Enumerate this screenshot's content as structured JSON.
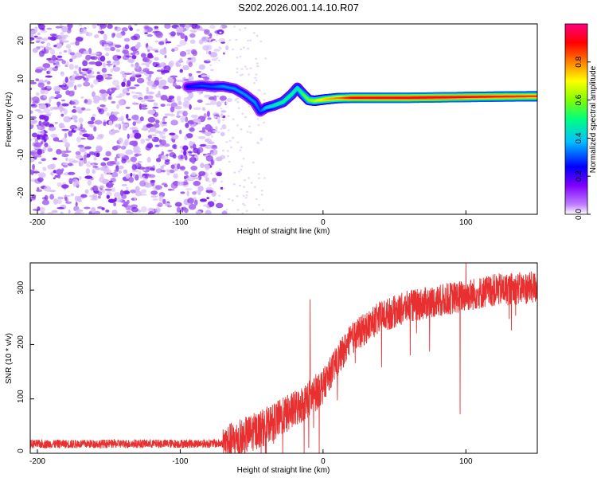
{
  "title": "S202.2026.001.14.10.R07",
  "chart_data": [
    {
      "type": "heatmap",
      "name": "spectrogram",
      "xlabel": "Height of straight line (km)",
      "ylabel": "Frequency (Hz)",
      "xlim": [
        -205,
        150
      ],
      "ylim": [
        -25,
        25
      ],
      "xticks": [
        -200,
        -100,
        0,
        100
      ],
      "yticks": [
        -20,
        -10,
        0,
        10,
        20
      ],
      "colorbar": {
        "label": "Normalized spectral amplitude",
        "range": [
          0,
          1
        ],
        "ticks": [
          0.0,
          0.2,
          0.4,
          0.6,
          0.8
        ],
        "colors": [
          "#ffffff",
          "#c080ff",
          "#8000ff",
          "#0000ff",
          "#00c0ff",
          "#00ff80",
          "#80ff00",
          "#ffff00",
          "#ff8000",
          "#ff0000",
          "#ff0080"
        ]
      },
      "ridge": {
        "x": [
          -95,
          -85,
          -78,
          -70,
          -62,
          -55,
          -48,
          -44,
          -40,
          -35,
          -28,
          -22,
          -18,
          -14,
          -10,
          -6,
          -2,
          2,
          10,
          20,
          40,
          60,
          80,
          100,
          120,
          150
        ],
        "y": [
          8.5,
          8.8,
          8.5,
          8.6,
          8.0,
          6.5,
          4.5,
          2.0,
          3.0,
          3.5,
          4.5,
          6.5,
          8.2,
          6.5,
          5.0,
          4.8,
          5.0,
          5.2,
          5.5,
          5.6,
          5.6,
          5.6,
          5.7,
          5.8,
          5.9,
          6.0
        ],
        "amplitude": [
          0.25,
          0.3,
          0.3,
          0.35,
          0.35,
          0.35,
          0.35,
          0.3,
          0.4,
          0.45,
          0.5,
          0.5,
          0.45,
          0.55,
          0.6,
          0.65,
          0.7,
          0.75,
          0.8,
          0.9,
          0.92,
          0.93,
          0.93,
          0.9,
          0.88,
          0.85
        ]
      }
    },
    {
      "type": "line",
      "name": "snr",
      "xlabel": "Height of straight line (km)",
      "ylabel": "SNR (10 * v/v)",
      "xlim": [
        -205,
        150
      ],
      "ylim": [
        0,
        350
      ],
      "xticks": [
        -200,
        -100,
        0,
        100
      ],
      "yticks": [
        0,
        100,
        200,
        300
      ],
      "color": "#e83030",
      "trend": {
        "x": [
          -205,
          -70,
          -60,
          -40,
          -20,
          -10,
          0,
          10,
          20,
          40,
          60,
          80,
          100,
          120,
          150
        ],
        "y": [
          17,
          18,
          25,
          50,
          80,
          100,
          125,
          170,
          210,
          250,
          270,
          280,
          290,
          300,
          305
        ]
      },
      "spikes": [
        {
          "x": -9,
          "y": 283
        },
        {
          "x": 100,
          "y": 350
        },
        {
          "x": 96,
          "y": 72
        },
        {
          "x": -10,
          "y": 10
        }
      ]
    }
  ]
}
